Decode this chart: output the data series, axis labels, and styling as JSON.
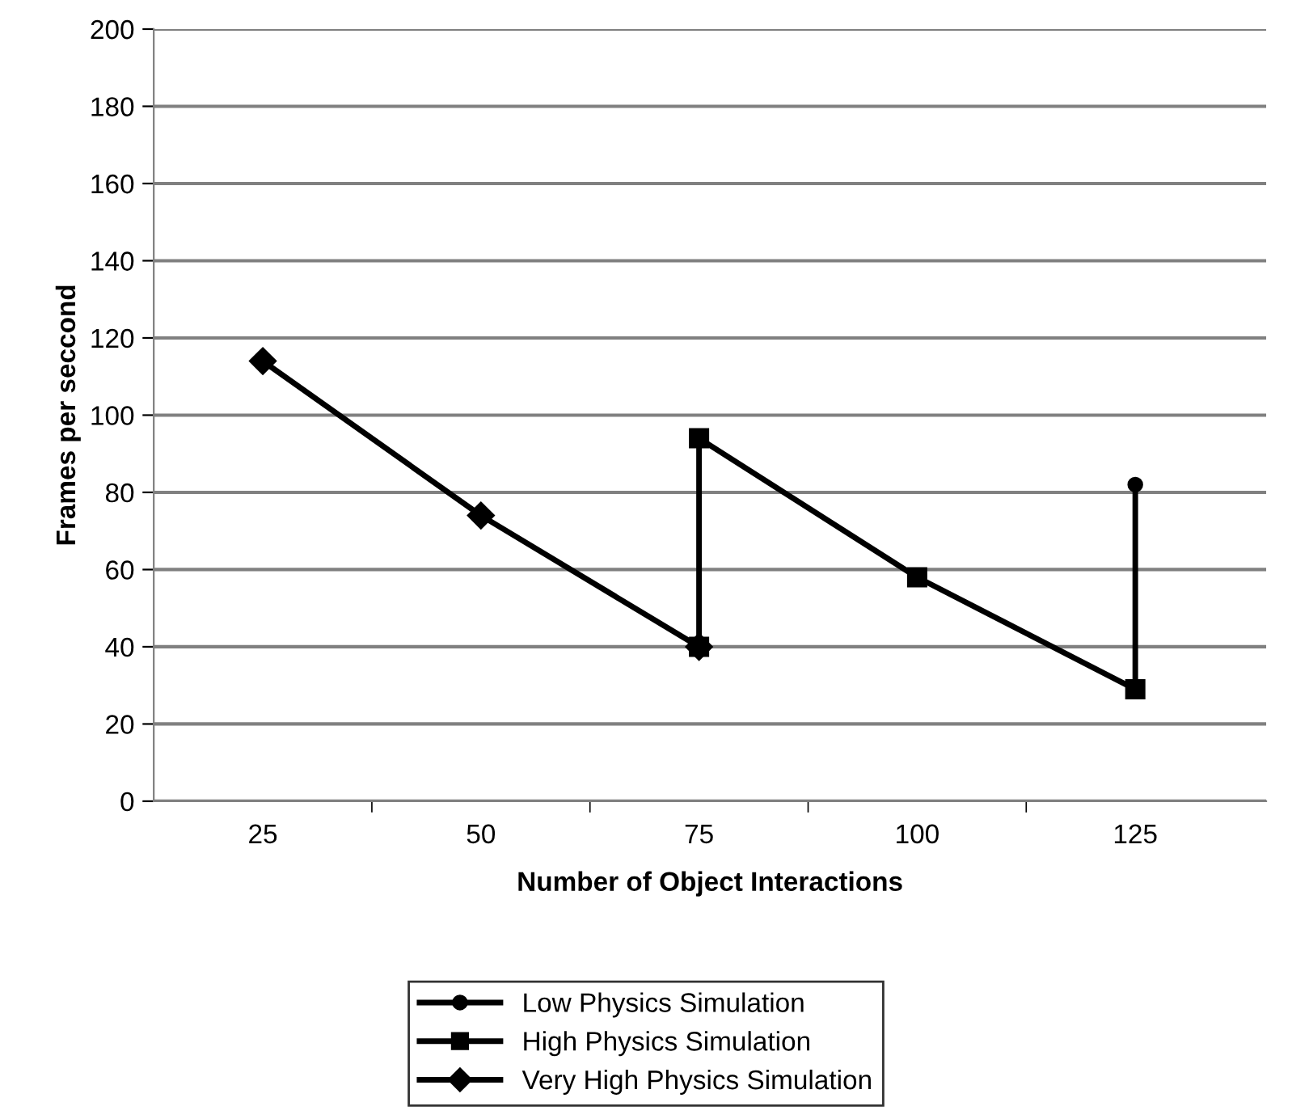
{
  "chart_data": {
    "type": "line",
    "xlabel": "Number of Object Interactions",
    "ylabel": "Frames per seccond",
    "categories": [
      "25",
      "50",
      "75",
      "100",
      "125"
    ],
    "ylim": [
      0,
      200
    ],
    "yticks": [
      0,
      20,
      40,
      60,
      80,
      100,
      120,
      140,
      160,
      180,
      200
    ],
    "grid": "y",
    "legend": "bottom",
    "line_style": "solid",
    "series": [
      {
        "name": "Low Physics Simulation",
        "color": "#000000",
        "marker": "circle",
        "x": [
          "125",
          "125"
        ],
        "values": [
          29,
          82
        ]
      },
      {
        "name": "High Physics Simulation",
        "color": "#000000",
        "marker": "square",
        "x": [
          "75",
          "75",
          "100",
          "125"
        ],
        "values": [
          40,
          94,
          58,
          29
        ]
      },
      {
        "name": "Very High Physics Simulation",
        "color": "#000000",
        "marker": "diamond",
        "x": [
          "25",
          "50",
          "75"
        ],
        "values": [
          114,
          74,
          40
        ]
      }
    ]
  }
}
